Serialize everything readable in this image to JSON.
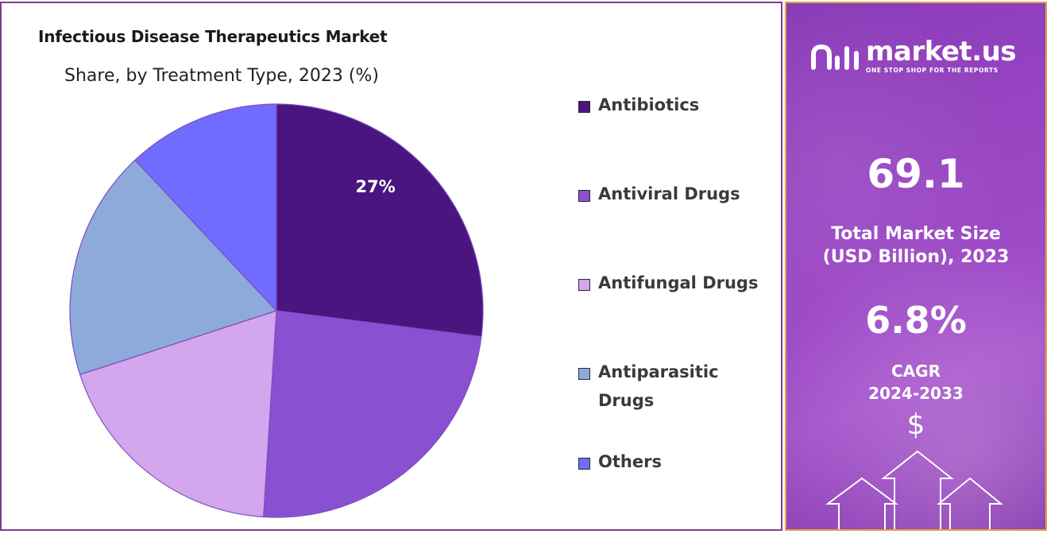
{
  "chart_data": {
    "type": "pie",
    "title": "Infectious Disease Therapeutics Market",
    "subtitle": "Share, by Treatment Type, 2023 (%)",
    "categories": [
      "Antibiotics",
      "Antiviral Drugs",
      "Antifungal Drugs",
      "Antiparasitic Drugs",
      "Others"
    ],
    "values": [
      27,
      24,
      19,
      18,
      12
    ],
    "data_labels": [
      "27%",
      "",
      "",
      "",
      ""
    ],
    "colors": [
      "#4b1580",
      "#8a50d2",
      "#d4a6ee",
      "#8eaadb",
      "#6f6cff"
    ],
    "legend_position": "right"
  },
  "side_panel": {
    "brand_name": "market.us",
    "brand_tagline": "ONE STOP SHOP FOR THE REPORTS",
    "market_size_value": "69.1",
    "market_size_label_line1": "Total Market Size",
    "market_size_label_line2": "(USD Billion), 2023",
    "cagr_value": "6.8%",
    "cagr_label_line1": "CAGR",
    "cagr_label_line2": "2024-2033",
    "currency_symbol": "$",
    "icons": [
      "market-us-logo-icon",
      "dollar-icon",
      "growth-arrows-icon"
    ]
  }
}
